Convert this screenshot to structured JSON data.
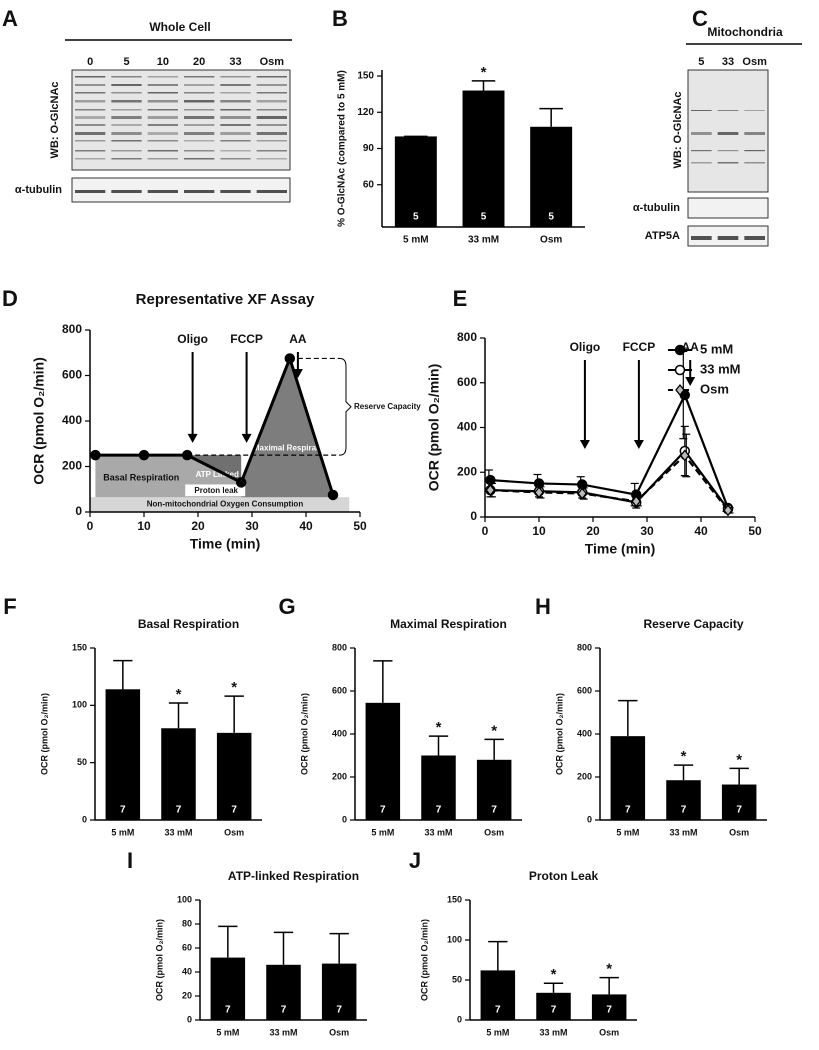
{
  "blots": [
    {
      "panel": "A",
      "title": "Whole Cell",
      "lanes": [
        "0",
        "5",
        "10",
        "20",
        "33",
        "Osm"
      ],
      "labels": [
        "WB: O-GlcNAc",
        "α-tubulin"
      ]
    },
    {
      "panel": "C",
      "title": "Mitochondria",
      "lanes": [
        "5",
        "33",
        "Osm"
      ],
      "labels": [
        "WB: O-GlcNAc",
        "α-tubulin",
        "ATP5A"
      ]
    }
  ],
  "chart_data": [
    {
      "type": "bar",
      "panel": "B",
      "ylabel": "% O-GlcNAc (compared to 5 mM)",
      "categories": [
        "5 mM",
        "33 mM",
        "Osm"
      ],
      "values": [
        100,
        138,
        108
      ],
      "errors": [
        0,
        8,
        15
      ],
      "n": [
        5,
        5,
        5
      ],
      "stars": [
        null,
        "*",
        null
      ],
      "color": "#000000",
      "ylim": [
        25,
        155
      ],
      "yticks": [
        60,
        90,
        120,
        150
      ]
    },
    {
      "type": "line",
      "panel": "D",
      "title": "Representative XF Assay",
      "xlabel": "Time (min)",
      "ylabel": "OCR (pmol O₂/min)",
      "x": [
        1,
        10,
        18,
        28,
        37,
        45
      ],
      "values": [
        250,
        250,
        250,
        130,
        675,
        75
      ],
      "color": "#000000",
      "non_mito_level": 65,
      "xlim": [
        0,
        50
      ],
      "xticks": [
        0,
        10,
        20,
        30,
        40,
        50
      ],
      "ylim": [
        0,
        800
      ],
      "yticks": [
        0,
        200,
        400,
        600,
        800
      ],
      "injections": [
        {
          "label": "Oligo",
          "x": 19
        },
        {
          "label": "FCCP",
          "x": 29
        },
        {
          "label": "AA",
          "x": 38.5
        }
      ],
      "regions": [
        "Basal Respiration",
        "ATP Linked",
        "Proton leak",
        "Maximal Respiration",
        "Reserve Capacity",
        "Non-mitochondrial Oxygen Consumption"
      ]
    },
    {
      "type": "line",
      "panel": "E",
      "xlabel": "Time (min)",
      "ylabel": "OCR (pmol O₂/min)",
      "x": [
        1,
        10,
        18,
        28,
        37,
        45
      ],
      "xlim": [
        0,
        50
      ],
      "xticks": [
        0,
        10,
        20,
        30,
        40,
        50
      ],
      "ylim": [
        0,
        800
      ],
      "yticks": [
        0,
        200,
        400,
        600,
        800
      ],
      "legend": "upper right",
      "series": [
        {
          "name": "5 mM",
          "color": "#000000",
          "marker": "circle",
          "dashed": false,
          "values": [
            165,
            150,
            145,
            100,
            545,
            40
          ],
          "errors": [
            45,
            40,
            35,
            50,
            195,
            15
          ]
        },
        {
          "name": "33 mM",
          "color": "#000000",
          "marker": "open-circle",
          "dashed": false,
          "values": [
            120,
            115,
            110,
            65,
            295,
            35
          ],
          "errors": [
            30,
            25,
            25,
            25,
            110,
            15
          ]
        },
        {
          "name": "Osm",
          "color": "#000000",
          "marker": "diamond",
          "dashed": true,
          "values": [
            120,
            110,
            105,
            70,
            275,
            30
          ],
          "errors": [
            30,
            25,
            25,
            20,
            95,
            12
          ]
        }
      ],
      "injections": [
        {
          "label": "Oligo",
          "x": 18.5
        },
        {
          "label": "FCCP",
          "x": 28.5
        },
        {
          "label": "AA",
          "x": 38
        }
      ]
    },
    {
      "type": "bar",
      "panel": "F",
      "title": "Basal Respiration",
      "ylabel": "OCR (pmol O₂/min)",
      "categories": [
        "5 mM",
        "33 mM",
        "Osm"
      ],
      "values": [
        114,
        80,
        76
      ],
      "errors": [
        25,
        22,
        32
      ],
      "n": [
        7,
        7,
        7
      ],
      "stars": [
        null,
        "*",
        "*"
      ],
      "color": "#000000",
      "ylim": [
        0,
        150
      ],
      "yticks": [
        0,
        50,
        100,
        150
      ]
    },
    {
      "type": "bar",
      "panel": "G",
      "title": "Maximal Respiration",
      "ylabel": "OCR (pmol O₂/min)",
      "categories": [
        "5 mM",
        "33 mM",
        "Osm"
      ],
      "values": [
        545,
        300,
        280
      ],
      "errors": [
        195,
        90,
        95
      ],
      "n": [
        7,
        7,
        7
      ],
      "stars": [
        null,
        "*",
        "*"
      ],
      "color": "#000000",
      "ylim": [
        0,
        800
      ],
      "yticks": [
        0,
        200,
        400,
        600,
        800
      ]
    },
    {
      "type": "bar",
      "panel": "H",
      "title": "Reserve Capacity",
      "ylabel": "OCR (pmol O₂/min)",
      "categories": [
        "5 mM",
        "33 mM",
        "Osm"
      ],
      "values": [
        390,
        185,
        165
      ],
      "errors": [
        165,
        70,
        75
      ],
      "n": [
        7,
        7,
        7
      ],
      "stars": [
        null,
        "*",
        "*"
      ],
      "color": "#000000",
      "ylim": [
        0,
        800
      ],
      "yticks": [
        0,
        200,
        400,
        600,
        800
      ]
    },
    {
      "type": "bar",
      "panel": "I",
      "title": "ATP-linked Respiration",
      "ylabel": "OCR (pmol O₂/min)",
      "categories": [
        "5 mM",
        "33 mM",
        "Osm"
      ],
      "values": [
        52,
        46,
        47
      ],
      "errors": [
        26,
        27,
        25
      ],
      "n": [
        7,
        7,
        7
      ],
      "stars": [
        null,
        null,
        null
      ],
      "color": "#000000",
      "ylim": [
        0,
        100
      ],
      "yticks": [
        0,
        20,
        40,
        60,
        80,
        100
      ]
    },
    {
      "type": "bar",
      "panel": "J",
      "title": "Proton Leak",
      "ylabel": "OCR (pmol O₂/min)",
      "categories": [
        "5 mM",
        "33 mM",
        "Osm"
      ],
      "values": [
        62,
        34,
        32
      ],
      "errors": [
        36,
        12,
        21
      ],
      "n": [
        7,
        7,
        7
      ],
      "stars": [
        null,
        "*",
        "*"
      ],
      "color": "#000000",
      "ylim": [
        0,
        150
      ],
      "yticks": [
        0,
        50,
        100,
        150
      ]
    }
  ]
}
